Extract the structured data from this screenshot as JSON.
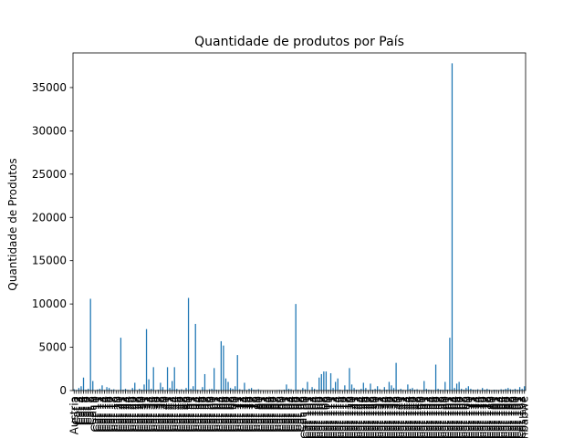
{
  "chart_data": {
    "type": "bar",
    "title": "Quantidade de produtos por País",
    "xlabel": "",
    "ylabel": "Quantidade de Produtos",
    "ylim": [
      0,
      39000
    ],
    "yticks": [
      0,
      5000,
      10000,
      15000,
      20000,
      25000,
      30000,
      35000
    ],
    "ytick_labels": [
      "0",
      "5000",
      "10000",
      "15000",
      "20000",
      "25000",
      "30000",
      "35000"
    ],
    "bar_color": "#1f77b4",
    "grid": false,
    "legend": "none",
    "categories": [
      "Austria",
      "Cat 2",
      "Cat 3",
      "Cat 4",
      "Cat 5",
      "Cat 6",
      "Cat 7",
      "Cat 8",
      "Cat 9",
      "Cat 10",
      "Cat 11",
      "Cat 12",
      "Cat 13",
      "Cat 14",
      "Cat 15",
      "Cat 16",
      "Cat 17",
      "Cat 18",
      "Cat 19",
      "Cat 20",
      "Cat 21",
      "Cat 22",
      "Cat 23",
      "Cat 24",
      "Cat 25",
      "Cat 26",
      "Cat 27",
      "Cat 28",
      "Cat 29",
      "Cat 30",
      "Cat 31",
      "Cat 32",
      "Cat 33",
      "Cat 34",
      "Cat 35",
      "Cat 36",
      "Cat 37",
      "Cat 38",
      "Cat 39",
      "Cat 40",
      "Cat 41",
      "Cat 42",
      "Cat 43",
      "Cat 44",
      "Cat 45",
      "Cat 46",
      "Cat 47",
      "Cat 48",
      "Cat 49",
      "Cat 50",
      "Cat 51",
      "Cat 52",
      "Cat 53",
      "Cat 54",
      "Cat 55",
      "Cat 56",
      "Cat 57",
      "Cat 58",
      "Cat 59",
      "Cat 60",
      "Cat 61",
      "Cat 62",
      "Cat 63",
      "Cat 64",
      "Cat 65",
      "Cat 66",
      "Cat 67",
      "Cat 68",
      "Cat 69",
      "Cat 70",
      "Cat 71",
      "Cat 72",
      "Cat 73",
      "Cat 74",
      "Cat 75",
      "Cat 76",
      "Cat 77",
      "Cat 78",
      "Cat 79",
      "Cat 80",
      "Cat 81",
      "Cat 82",
      "Cat 83",
      "Cat 84",
      "Cat 85",
      "Cat 86",
      "Cat 87",
      "Cat 88",
      "Cat 89",
      "Cat 90",
      "Cat 91",
      "Cat 92",
      "Cat 93",
      "Cat 94",
      "Cat 95",
      "Cat 96",
      "Cat 97",
      "Cat 98",
      "Cat 99",
      "Cat 100",
      "Cat 101",
      "Cat 102",
      "Cat 103",
      "Cat 104",
      "Cat 105",
      "Cat 106",
      "Cat 107",
      "Cat 108",
      "Cat 109",
      "Cat 110",
      "Cat 111",
      "Cat 112",
      "Cat 113",
      "Cat 114",
      "Cat 115",
      "Cat 116",
      "Cat 117",
      "Cat 118",
      "Cat 119",
      "Cat 120",
      "Cat 121",
      "Cat 122",
      "Cat 123",
      "Cat 124",
      "Cat 125",
      "Cat 126",
      "Cat 127",
      "Cat 128",
      "Cat 129",
      "Cat 130",
      "Cat 131",
      "Cat 132",
      "Cat 133",
      "Cat 134",
      "Cat 135",
      "Cat 136",
      "Cat 137",
      "Cat 138",
      "Cat 139",
      "Cat 140",
      "Cat 141",
      "Cat 142",
      "Cat 143",
      "Cat 144",
      "Cat 145",
      "Cat 146",
      "Cat 147",
      "Cat 148",
      "Cat 149",
      "Cat 150",
      "Cat 151",
      "Cat 152",
      "Cat 153",
      "Cat 154",
      "Cat 155",
      "Cat 156",
      "Cat 157",
      "Cat 158",
      "Cat 159",
      "Cat 160",
      "Cat 161",
      "Cat 162",
      "Cat 163",
      "Cat 164",
      "Cat 165",
      "Cat 166",
      "Cat 167",
      "Cat 168",
      "Cat 169",
      "Cat 170",
      "Cat 171",
      "Cat 172",
      "Cat 173",
      "Cat 174",
      "Cat 175",
      "Cat 176",
      "Cat 177",
      "Cat 178",
      "Cat 179",
      "Cat 180",
      "Cat 181",
      "Cat 182",
      "Cat 183",
      "Cat 184",
      "Cat 185",
      "Cat 186",
      "Cat 187",
      "Cat 188",
      "Cat 189",
      "Cat 190",
      "Cat 191",
      "Cat 192",
      "Cat 193",
      "Zimbabwe"
    ],
    "values": [
      150,
      80,
      300,
      500,
      1500,
      100,
      200,
      10600,
      1100,
      50,
      120,
      200,
      600,
      80,
      400,
      300,
      100,
      150,
      50,
      60,
      6100,
      100,
      200,
      80,
      40,
      300,
      900,
      50,
      200,
      120,
      700,
      7100,
      1300,
      200,
      2700,
      50,
      100,
      900,
      400,
      60,
      2700,
      300,
      1100,
      2700,
      200,
      80,
      150,
      60,
      300,
      10700,
      200,
      500,
      7700,
      100,
      50,
      400,
      1900,
      60,
      150,
      200,
      2600,
      100,
      80,
      5700,
      5200,
      1400,
      1000,
      300,
      200,
      500,
      4100,
      150,
      80,
      900,
      50,
      200,
      300,
      100,
      80,
      150,
      60,
      40,
      30,
      50,
      20,
      30,
      40,
      60,
      80,
      50,
      100,
      700,
      200,
      150,
      50,
      10000,
      100,
      60,
      300,
      150,
      1000,
      50,
      400,
      200,
      80,
      1500,
      1900,
      2200,
      2200,
      100,
      2000,
      300,
      1000,
      1400,
      100,
      50,
      600,
      100,
      2600,
      700,
      300,
      100,
      80,
      200,
      900,
      300,
      50,
      800,
      100,
      200,
      500,
      150,
      60,
      400,
      100,
      1000,
      600,
      300,
      3200,
      100,
      200,
      80,
      50,
      700,
      200,
      300,
      100,
      150,
      60,
      40,
      1100,
      200,
      100,
      80,
      60,
      3000,
      200,
      100,
      80,
      1000,
      100,
      6100,
      37800,
      300,
      800,
      1000,
      200,
      100,
      300,
      500,
      200,
      100,
      80,
      150,
      60,
      300,
      100,
      200,
      100,
      50,
      100,
      80,
      60,
      150,
      100,
      200,
      300,
      150,
      100,
      200,
      100,
      400,
      200,
      500
    ]
  }
}
